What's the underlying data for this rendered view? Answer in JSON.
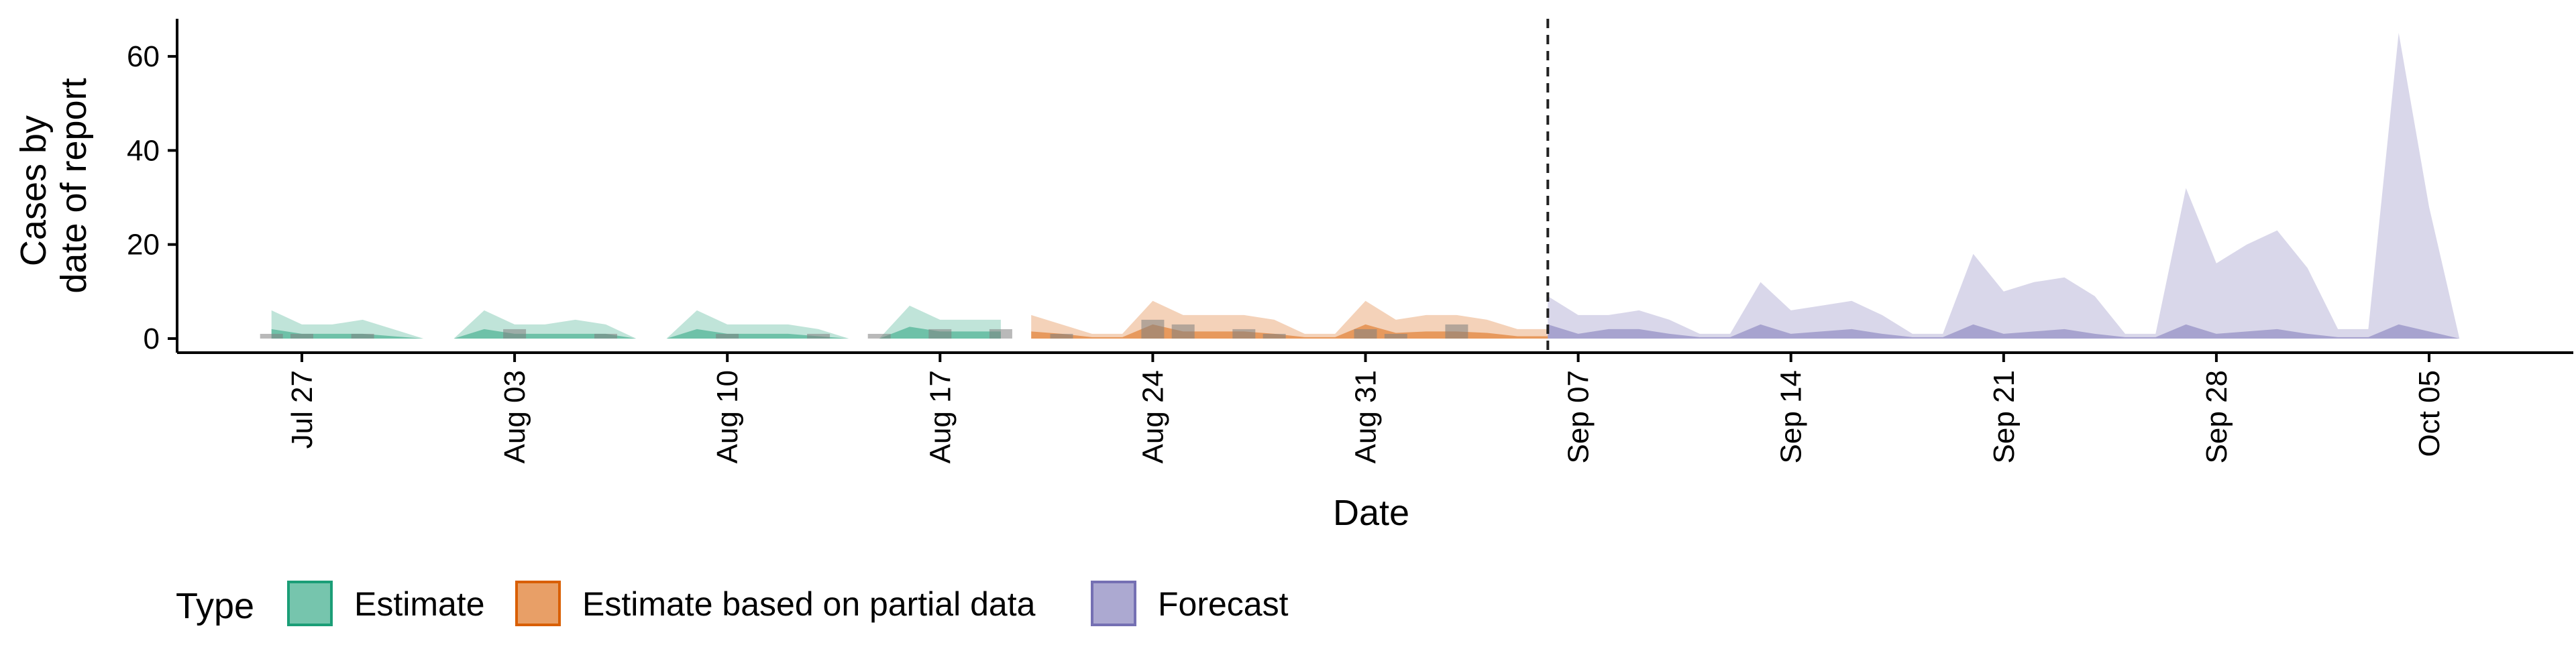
{
  "chart_data": {
    "type": "area",
    "title": "",
    "xlabel": "Date",
    "ylabel": [
      "Cases by",
      "date of report"
    ],
    "x_range": [
      "2020-07-22",
      "2020-10-11"
    ],
    "ylim": [
      -3,
      68
    ],
    "y_ticks": [
      0,
      20,
      40,
      60
    ],
    "x_ticks": [
      {
        "date": "2020-07-27",
        "label": "Jul 27"
      },
      {
        "date": "2020-08-03",
        "label": "Aug 03"
      },
      {
        "date": "2020-08-10",
        "label": "Aug 10"
      },
      {
        "date": "2020-08-17",
        "label": "Aug 17"
      },
      {
        "date": "2020-08-24",
        "label": "Aug 24"
      },
      {
        "date": "2020-08-31",
        "label": "Aug 31"
      },
      {
        "date": "2020-09-07",
        "label": "Sep 07"
      },
      {
        "date": "2020-09-14",
        "label": "Sep 14"
      },
      {
        "date": "2020-09-21",
        "label": "Sep 21"
      },
      {
        "date": "2020-09-28",
        "label": "Sep 28"
      },
      {
        "date": "2020-10-05",
        "label": "Oct 05"
      }
    ],
    "forecast_start_line": "2020-09-06",
    "grid": false,
    "legend": {
      "title": "Type",
      "position": "bottom",
      "entries": [
        "Estimate",
        "Estimate based on partial data",
        "Forecast"
      ]
    },
    "colors": {
      "Estimate": "#1b9e77",
      "Estimate based on partial data": "#d95f02",
      "Forecast": "#7570b3",
      "observed_bar": "#808080"
    },
    "series": [
      {
        "name": "Estimate",
        "dates": [
          "2020-07-26",
          "2020-07-27",
          "2020-07-28",
          "2020-07-29",
          "2020-07-30",
          "2020-07-31",
          "2020-08-01",
          "2020-08-02",
          "2020-08-03",
          "2020-08-04",
          "2020-08-05",
          "2020-08-06",
          "2020-08-07",
          "2020-08-08",
          "2020-08-09",
          "2020-08-10",
          "2020-08-11",
          "2020-08-12",
          "2020-08-13",
          "2020-08-14",
          "2020-08-15",
          "2020-08-16",
          "2020-08-17",
          "2020-08-18",
          "2020-08-19"
        ],
        "upper_90": [
          6,
          3,
          3,
          4,
          2,
          0,
          0,
          6,
          3,
          3,
          4,
          3,
          0,
          0,
          6,
          3,
          3,
          3,
          2,
          0,
          0,
          7,
          4,
          4,
          4
        ],
        "upper_50": [
          2,
          1,
          1,
          1,
          0.5,
          0,
          0,
          2,
          1,
          1,
          1,
          1,
          0,
          0,
          2,
          1,
          1,
          1,
          0.5,
          0,
          0,
          2.5,
          1.5,
          1.5,
          1.5
        ],
        "lower": [
          0,
          0,
          0,
          0,
          0,
          0,
          0,
          0,
          0,
          0,
          0,
          0,
          0,
          0,
          0,
          0,
          0,
          0,
          0,
          0,
          0,
          0,
          0,
          0,
          0
        ]
      },
      {
        "name": "Estimate based on partial data",
        "dates": [
          "2020-08-20",
          "2020-08-21",
          "2020-08-22",
          "2020-08-23",
          "2020-08-24",
          "2020-08-25",
          "2020-08-26",
          "2020-08-27",
          "2020-08-28",
          "2020-08-29",
          "2020-08-30",
          "2020-08-31",
          "2020-09-01",
          "2020-09-02",
          "2020-09-03",
          "2020-09-04",
          "2020-09-05",
          "2020-09-06"
        ],
        "upper_90": [
          5,
          3,
          1,
          1,
          8,
          5,
          5,
          5,
          4,
          1,
          1,
          8,
          4,
          5,
          5,
          4,
          2,
          2
        ],
        "upper_50": [
          1.5,
          1,
          0.3,
          0.3,
          3,
          1.5,
          1.5,
          1.5,
          1,
          0.3,
          0.3,
          3,
          1.2,
          1.5,
          1.5,
          1.2,
          0.5,
          0.5
        ],
        "lower": [
          0,
          0,
          0,
          0,
          0,
          0,
          0,
          0,
          0,
          0,
          0,
          0,
          0,
          0,
          0,
          0,
          0,
          0
        ]
      },
      {
        "name": "Forecast",
        "dates": [
          "2020-09-06",
          "2020-09-07",
          "2020-09-08",
          "2020-09-09",
          "2020-09-10",
          "2020-09-11",
          "2020-09-12",
          "2020-09-13",
          "2020-09-14",
          "2020-09-15",
          "2020-09-16",
          "2020-09-17",
          "2020-09-18",
          "2020-09-19",
          "2020-09-20",
          "2020-09-21",
          "2020-09-22",
          "2020-09-23",
          "2020-09-24",
          "2020-09-25",
          "2020-09-26",
          "2020-09-27",
          "2020-09-28",
          "2020-09-29",
          "2020-09-30",
          "2020-10-01",
          "2020-10-02",
          "2020-10-03",
          "2020-10-04",
          "2020-10-05",
          "2020-10-06"
        ],
        "upper_90": [
          9,
          5,
          5,
          6,
          4,
          1,
          1,
          12,
          6,
          7,
          8,
          5,
          1,
          1,
          18,
          10,
          12,
          13,
          9,
          1,
          1,
          32,
          16,
          20,
          23,
          15,
          2,
          2,
          65,
          28,
          0
        ],
        "upper_50": [
          3,
          1,
          2,
          2,
          1,
          0.3,
          0.3,
          3,
          1,
          1.5,
          2,
          1,
          0.3,
          0.3,
          3,
          1,
          1.5,
          2,
          1,
          0.3,
          0.3,
          3,
          1,
          1.5,
          2,
          1,
          0.3,
          0.3,
          3,
          1.5,
          0
        ],
        "lower": [
          0,
          0,
          0,
          0,
          0,
          0,
          0,
          0,
          0,
          0,
          0,
          0,
          0,
          0,
          0,
          0,
          0,
          0,
          0,
          0,
          0,
          0,
          0,
          0,
          0,
          0,
          0,
          0,
          0,
          0,
          0
        ]
      }
    ],
    "observed": {
      "dates": [
        "2020-07-26",
        "2020-07-27",
        "2020-07-29",
        "2020-08-03",
        "2020-08-06",
        "2020-08-10",
        "2020-08-13",
        "2020-08-15",
        "2020-08-17",
        "2020-08-19",
        "2020-08-21",
        "2020-08-24",
        "2020-08-25",
        "2020-08-27",
        "2020-08-28",
        "2020-08-31",
        "2020-09-01",
        "2020-09-03"
      ],
      "values": [
        1,
        1,
        1,
        2,
        1,
        1,
        1,
        1,
        2,
        2,
        1,
        4,
        3,
        2,
        1,
        2,
        1,
        3
      ]
    }
  }
}
